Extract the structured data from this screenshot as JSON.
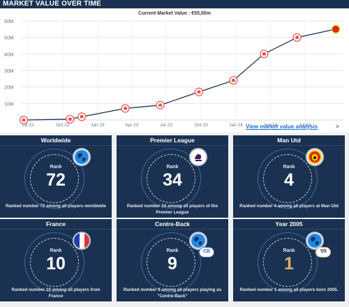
{
  "header": {
    "title": "MARKET VALUE OVER TIME"
  },
  "chart_data": {
    "type": "line",
    "title": "Current Market Value : €55,00m",
    "x_labels": [
      "Jul 22",
      "Oct 22",
      "Jan 23",
      "Apr 23",
      "Jul 23",
      "Oct 23",
      "Jan 24",
      "Apr 24",
      "Jul 24"
    ],
    "y_labels": [
      "60M",
      "50M",
      "40M",
      "30M",
      "20M",
      "10M"
    ],
    "ylim": [
      0,
      60
    ],
    "grid": true,
    "series": [
      {
        "name": "",
        "points": [
          {
            "x": "2022-06-20",
            "y": 0
          },
          {
            "x": "2022-10-20",
            "y": 0.5
          },
          {
            "x": "2022-11-20",
            "y": 2
          },
          {
            "x": "2023-03-15",
            "y": 7
          },
          {
            "x": "2023-06-15",
            "y": 9
          },
          {
            "x": "2023-09-25",
            "y": 17
          },
          {
            "x": "2023-12-25",
            "y": 24
          },
          {
            "x": "2024-03-15",
            "y": 40
          },
          {
            "x": "2024-06-10",
            "y": 50
          },
          {
            "x": "2024-09-20",
            "y": 55
          }
        ]
      }
    ],
    "line_color": "#1a3151",
    "marker_color": "#e8524a"
  },
  "link": {
    "label": "View market value analysis",
    "arrow": ">"
  },
  "cards": [
    {
      "title": "Worldwide",
      "rank_label": "Rank",
      "rank": "72",
      "desc": "Ranked number 72 among all players worldwide",
      "badge": "globe-icon",
      "gold": false,
      "pill": ""
    },
    {
      "title": "Premier League",
      "rank_label": "Rank",
      "rank": "34",
      "desc": "Ranked number 34 among all players of the Premier League",
      "badge": "league-logo-icon",
      "gold": false,
      "pill": ""
    },
    {
      "title": "Man Utd",
      "rank_label": "Rank",
      "rank": "4",
      "desc": "Ranked number 4 among all players at Man Utd",
      "badge": "club-crest-icon",
      "gold": false,
      "pill": ""
    },
    {
      "title": "France",
      "rank_label": "Rank",
      "rank": "10",
      "desc": "Ranked number 10 among all players from France",
      "badge": "flag-france-icon",
      "gold": false,
      "pill": ""
    },
    {
      "title": "Centre-Back",
      "rank_label": "Rank",
      "rank": "9",
      "desc": "Ranked number 9 among all players playing as \"Centre-Back\"",
      "badge": "globe-icon",
      "gold": false,
      "pill": "CB"
    },
    {
      "title": "Year 2005",
      "rank_label": "Rank",
      "rank": "1",
      "desc": "Ranked number 1 among all players born 2005.",
      "badge": "globe-icon",
      "gold": true,
      "pill": "'05"
    }
  ],
  "colors": {
    "navy": "#1a3151",
    "accent_blue": "#1f6fd0",
    "gold": "#d7b46a",
    "france_blue": "#1f3fa8",
    "france_red": "#e0303a",
    "united_red": "#da291c"
  }
}
